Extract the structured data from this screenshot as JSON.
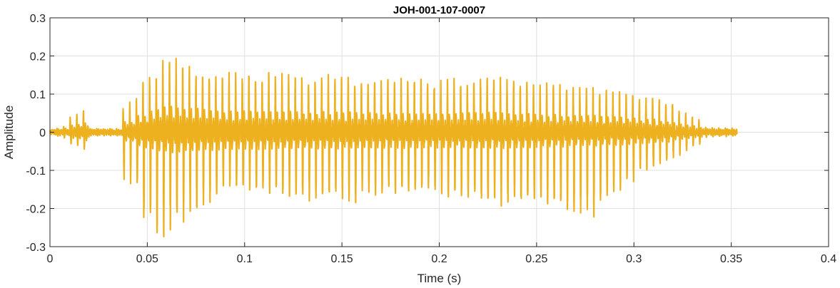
{
  "chart_data": {
    "type": "line",
    "title": "JOH-001-107-0007",
    "xlabel": "Time (s)",
    "ylabel": "Amplitude",
    "xlim": [
      0,
      0.4
    ],
    "ylim": [
      -0.3,
      0.3
    ],
    "grid": true,
    "line_color": "#EDB120",
    "xticks": [
      "0",
      "0.05",
      "0.1",
      "0.15",
      "0.2",
      "0.25",
      "0.3",
      "0.35",
      "0.4"
    ],
    "yticks": [
      "-0.3",
      "-0.2",
      "-0.1",
      "0",
      "0.1",
      "0.2",
      "0.3"
    ],
    "series": [
      {
        "segments": [
          {
            "t0": 0.0,
            "t1": 0.01,
            "posAmp": [
              0.005,
              0.02
            ],
            "negAmp": [
              0.005,
              0.02
            ]
          },
          {
            "t0": 0.01,
            "t1": 0.02,
            "posAmp": [
              0.04,
              0.07
            ],
            "negAmp": [
              0.03,
              0.05
            ]
          },
          {
            "t0": 0.02,
            "t1": 0.037,
            "posAmp": [
              0.01,
              0.01
            ],
            "negAmp": [
              0.01,
              0.01
            ]
          },
          {
            "t0": 0.037,
            "t1": 0.045,
            "posAmp": [
              0.06,
              0.1
            ],
            "negAmp": [
              0.13,
              0.15
            ]
          },
          {
            "t0": 0.045,
            "t1": 0.06,
            "posAmp": [
              0.12,
              0.2
            ],
            "negAmp": [
              0.22,
              0.3
            ]
          },
          {
            "t0": 0.06,
            "t1": 0.09,
            "posAmp": [
              0.2,
              0.16
            ],
            "negAmp": [
              0.27,
              0.16
            ]
          },
          {
            "t0": 0.09,
            "t1": 0.16,
            "posAmp": [
              0.16,
              0.15
            ],
            "negAmp": [
              0.15,
              0.2
            ]
          },
          {
            "t0": 0.16,
            "t1": 0.2,
            "posAmp": [
              0.15,
              0.14
            ],
            "negAmp": [
              0.17,
              0.16
            ]
          },
          {
            "t0": 0.2,
            "t1": 0.23,
            "posAmp": [
              0.14,
              0.15
            ],
            "negAmp": [
              0.17,
              0.2
            ]
          },
          {
            "t0": 0.23,
            "t1": 0.26,
            "posAmp": [
              0.15,
              0.13
            ],
            "negAmp": [
              0.2,
              0.2
            ]
          },
          {
            "t0": 0.26,
            "t1": 0.28,
            "posAmp": [
              0.13,
              0.12
            ],
            "negAmp": [
              0.21,
              0.23
            ]
          },
          {
            "t0": 0.28,
            "t1": 0.3,
            "posAmp": [
              0.12,
              0.11
            ],
            "negAmp": [
              0.2,
              0.13
            ]
          },
          {
            "t0": 0.3,
            "t1": 0.32,
            "posAmp": [
              0.1,
              0.08
            ],
            "negAmp": [
              0.12,
              0.08
            ]
          },
          {
            "t0": 0.32,
            "t1": 0.335,
            "posAmp": [
              0.07,
              0.03
            ],
            "negAmp": [
              0.07,
              0.03
            ]
          },
          {
            "t0": 0.335,
            "t1": 0.353,
            "posAmp": [
              0.015,
              0.01
            ],
            "negAmp": [
              0.015,
              0.01
            ]
          }
        ],
        "pitch_period": 0.0034
      }
    ]
  }
}
